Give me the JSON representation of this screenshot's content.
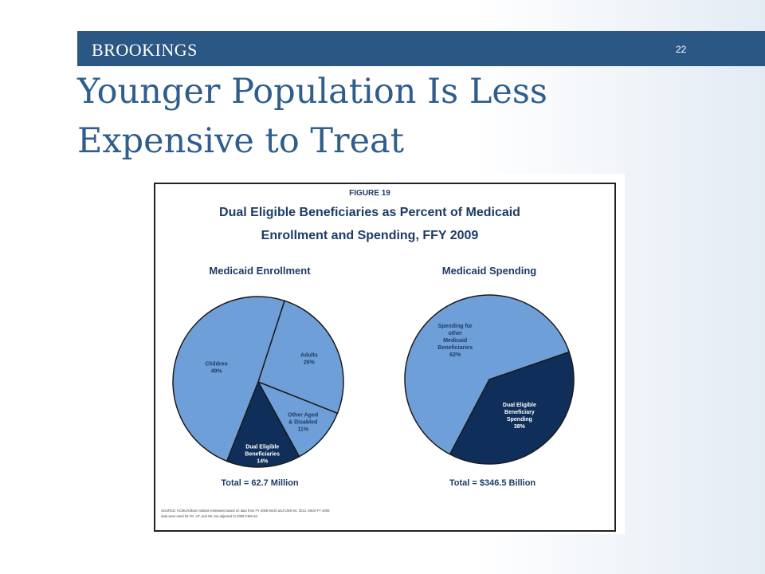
{
  "header": {
    "brand": "BROOKINGS",
    "slide_number": "22"
  },
  "slide": {
    "title_line1": "Younger Population Is Less",
    "title_line2": "Expensive to Treat"
  },
  "colors": {
    "banner": "#2b5785",
    "light_slice": "#6f9fd8",
    "dark_slice": "#0f2f5a",
    "title": "#2f5d8c"
  },
  "chart_data": [
    {
      "type": "pie",
      "figure_label": "FIGURE 19",
      "title_line1": "Dual Eligible Beneficiaries as Percent of Medicaid",
      "title_line2": "Enrollment and Spending, FFY 2009",
      "subtitle": "Medicaid Enrollment",
      "total": "Total = 62.7 Million",
      "slices": [
        {
          "label_lines": [
            "Adults",
            "26%"
          ],
          "value": 26,
          "color": "#6f9fd8"
        },
        {
          "label_lines": [
            "Other Aged",
            "& Disabled",
            "11%"
          ],
          "value": 11,
          "color": "#6f9fd8"
        },
        {
          "label_lines": [
            "Dual Eligible",
            "Beneficiaries",
            "14%"
          ],
          "value": 14,
          "color": "#0f2f5a"
        },
        {
          "label_lines": [
            "Children",
            "49%"
          ],
          "value": 49,
          "color": "#6f9fd8"
        }
      ]
    },
    {
      "type": "pie",
      "subtitle": "Medicaid Spending",
      "total": "Total = $346.5 Billion",
      "slices": [
        {
          "label_lines": [
            "Dual Eligible",
            "Beneficiary",
            "Spending",
            "38%"
          ],
          "value": 38,
          "color": "#0f2f5a"
        },
        {
          "label_lines": [
            "Spending for",
            "other",
            "Medicaid",
            "Beneficiaries",
            "62%"
          ],
          "value": 62,
          "color": "#6f9fd8"
        }
      ],
      "source_line1": "SOURCE: KCMU/Urban Institute estimates based on data from FY 2008 MSIS and CMS-64, 2012. MSIS FY 2008",
      "source_line2": "data were used for PA, UT, and WI, but adjusted to 2009 CMS-64."
    }
  ]
}
